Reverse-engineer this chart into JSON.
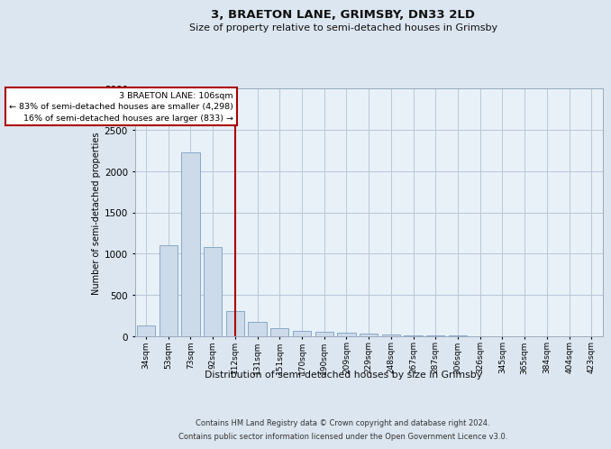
{
  "title": "3, BRAETON LANE, GRIMSBY, DN33 2LD",
  "subtitle": "Size of property relative to semi-detached houses in Grimsby",
  "xlabel": "Distribution of semi-detached houses by size in Grimsby",
  "ylabel": "Number of semi-detached properties",
  "footer_line1": "Contains HM Land Registry data © Crown copyright and database right 2024.",
  "footer_line2": "Contains public sector information licensed under the Open Government Licence v3.0.",
  "annotation_title": "3 BRAETON LANE: 106sqm",
  "annotation_line2": "← 83% of semi-detached houses are smaller (4,298)",
  "annotation_line3": "16% of semi-detached houses are larger (833) →",
  "categories": [
    "34sqm",
    "53sqm",
    "73sqm",
    "92sqm",
    "112sqm",
    "131sqm",
    "151sqm",
    "170sqm",
    "190sqm",
    "209sqm",
    "229sqm",
    "248sqm",
    "267sqm",
    "287sqm",
    "306sqm",
    "326sqm",
    "345sqm",
    "365sqm",
    "384sqm",
    "404sqm",
    "423sqm"
  ],
  "values": [
    130,
    1100,
    2230,
    1080,
    310,
    175,
    100,
    70,
    50,
    40,
    30,
    20,
    15,
    10,
    7,
    5,
    3,
    3,
    2,
    1,
    1
  ],
  "property_bin_index": 4,
  "bar_color": "#cddaea",
  "bar_edge_color": "#7aa0c0",
  "vline_color": "#aa0000",
  "annotation_box_edgecolor": "#aa0000",
  "annotation_fill": "#ffffff",
  "bg_color": "#dce6f0",
  "plot_bg_color": "#e8f0f8",
  "grid_color": "#b8c8d8",
  "ylim_max": 3000,
  "yticks": [
    0,
    500,
    1000,
    1500,
    2000,
    2500,
    3000
  ]
}
